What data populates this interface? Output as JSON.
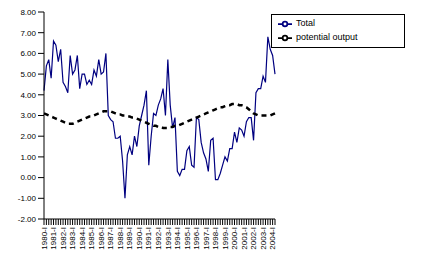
{
  "chart_data": {
    "type": "line",
    "categories": [
      "1980-I",
      null,
      null,
      null,
      "1981-I",
      null,
      null,
      null,
      "1982-I",
      null,
      null,
      null,
      "1983-I",
      null,
      null,
      null,
      "1984-I",
      null,
      null,
      null,
      "1985-I",
      null,
      null,
      null,
      "1986-I",
      null,
      null,
      null,
      "1987-I",
      null,
      null,
      null,
      "1988-I",
      null,
      null,
      null,
      "1989-I",
      null,
      null,
      null,
      "1990-I",
      null,
      null,
      null,
      "1991-I",
      null,
      null,
      null,
      "1992-I",
      null,
      null,
      null,
      "1993-I",
      null,
      null,
      null,
      "1994-I",
      null,
      null,
      null,
      "1995-I",
      null,
      null,
      null,
      "1996-I",
      null,
      null,
      null,
      "1997-I",
      null,
      null,
      null,
      "1998-I",
      null,
      null,
      null,
      "1999-I",
      null,
      null,
      null,
      "2000-I",
      null,
      null,
      null,
      "2001-I",
      null,
      null,
      null,
      "2002-I",
      null,
      null,
      null,
      "2003-I",
      null,
      null,
      null,
      "2004-I",
      null
    ],
    "series": [
      {
        "name": "Total",
        "color": "#000080",
        "line_style": "solid",
        "values": [
          4.2,
          5.4,
          5.7,
          4.8,
          6.6,
          6.4,
          5.6,
          6.2,
          4.6,
          4.4,
          4.1,
          5.9,
          5.0,
          5.2,
          5.9,
          4.3,
          5.0,
          5.0,
          4.5,
          4.7,
          4.5,
          5.2,
          4.9,
          5.7,
          5.0,
          5.1,
          6.0,
          3.0,
          2.8,
          2.7,
          1.9,
          1.9,
          2.0,
          0.8,
          -1.0,
          1.1,
          1.5,
          1.1,
          2.0,
          1.5,
          2.5,
          3.0,
          3.5,
          4.2,
          0.6,
          2.0,
          3.1,
          3.0,
          3.5,
          3.8,
          4.3,
          3.0,
          5.7,
          3.5,
          2.4,
          2.9,
          0.3,
          0.1,
          0.4,
          0.4,
          1.3,
          1.5,
          0.6,
          0.5,
          2.9,
          2.8,
          1.7,
          1.2,
          0.9,
          0.3,
          1.8,
          1.9,
          -0.1,
          -0.1,
          0.2,
          0.6,
          1.0,
          0.8,
          1.4,
          1.4,
          2.2,
          1.7,
          2.4,
          2.3,
          2.0,
          2.7,
          2.9,
          2.9,
          1.8,
          4.1,
          4.3,
          4.3,
          4.9,
          4.6,
          6.8,
          6.2,
          5.9,
          5.0
        ]
      },
      {
        "name": "potential output",
        "color": "#000000",
        "line_style": "dashed",
        "values": [
          3.1,
          3.05,
          3.0,
          2.95,
          2.9,
          2.85,
          2.8,
          2.75,
          2.7,
          2.65,
          2.6,
          2.6,
          2.6,
          2.65,
          2.7,
          2.75,
          2.8,
          2.85,
          2.9,
          2.95,
          2.95,
          3.0,
          3.05,
          3.1,
          3.15,
          3.2,
          3.2,
          3.2,
          3.2,
          3.15,
          3.1,
          3.05,
          3.05,
          3.0,
          3.0,
          2.95,
          2.95,
          2.9,
          2.9,
          2.85,
          2.8,
          2.75,
          2.7,
          2.65,
          2.6,
          2.55,
          2.5,
          2.5,
          2.45,
          2.45,
          2.4,
          2.4,
          2.4,
          2.45,
          2.45,
          2.5,
          2.5,
          2.55,
          2.6,
          2.65,
          2.7,
          2.75,
          2.8,
          2.85,
          2.9,
          2.95,
          3.0,
          3.05,
          3.1,
          3.15,
          3.2,
          3.25,
          3.3,
          3.35,
          3.4,
          3.4,
          3.45,
          3.5,
          3.5,
          3.55,
          3.55,
          3.55,
          3.5,
          3.5,
          3.45,
          3.4,
          3.3,
          3.2,
          3.1,
          3.05,
          3.0,
          3.0,
          3.0,
          3.0,
          3.0,
          3.0,
          3.05,
          3.1
        ]
      }
    ],
    "ylim": [
      -2,
      8
    ],
    "yticks": [
      {
        "value": -2,
        "label": "-2.00"
      },
      {
        "value": -1,
        "label": "-1.00"
      },
      {
        "value": 0,
        "label": "0.00"
      },
      {
        "value": 1,
        "label": "1.00"
      },
      {
        "value": 2,
        "label": "2.00"
      },
      {
        "value": 3,
        "label": "3.00"
      },
      {
        "value": 4,
        "label": "4.00"
      },
      {
        "value": 5,
        "label": "5.00"
      },
      {
        "value": 6,
        "label": "6.00"
      },
      {
        "value": 7,
        "label": "7.00"
      },
      {
        "value": 8,
        "label": "8.00"
      }
    ],
    "grid": false,
    "legend": "upper right"
  }
}
